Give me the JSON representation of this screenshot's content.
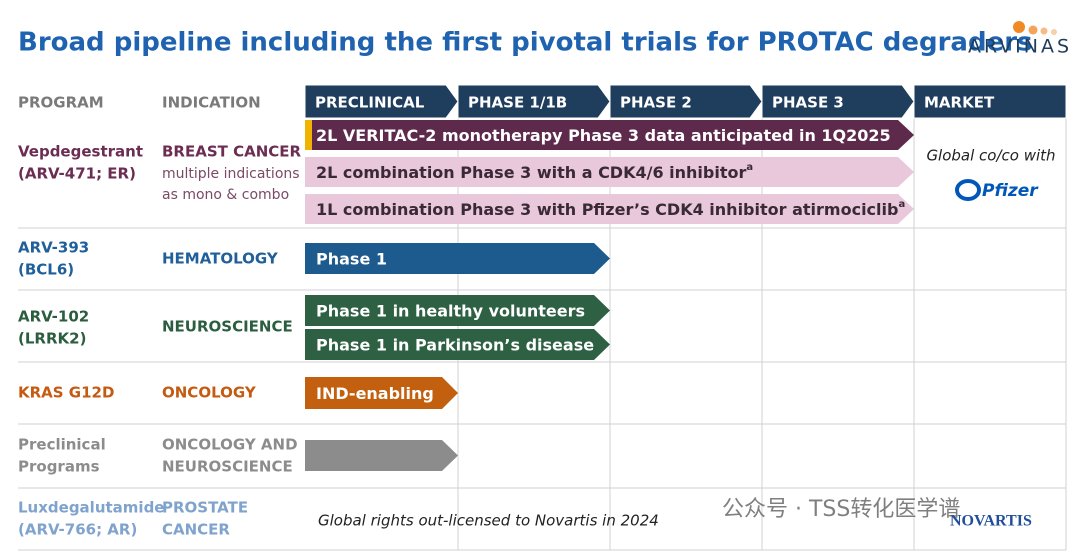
{
  "header": {
    "title": "Broad pipeline including the first pivotal trials for PROTAC degraders",
    "logo": "ARVINAS"
  },
  "columns": [
    "PROGRAM",
    "INDICATION"
  ],
  "phases": [
    "PRECLINICAL",
    "PHASE 1/1B",
    "PHASE 2",
    "PHASE 3",
    "MARKET"
  ],
  "rows": [
    {
      "program": [
        "Vepdegestrant",
        "(ARV-471; ER)"
      ],
      "indication": [
        "BREAST CANCER"
      ],
      "indication_note": [
        "multiple indications",
        "as mono & combo"
      ],
      "bars": [
        {
          "label": "2L VERITAC-2 monotherapy Phase 3 data anticipated in 1Q2025"
        },
        {
          "label": "2L combination Phase 3 with a CDK4/6 inhibitor",
          "footnote": "a"
        },
        {
          "label": "1L combination Phase 3 with Pfizer’s CDK4 inhibitor atirmociclib",
          "footnote": "a"
        }
      ],
      "market": "Global co/co with",
      "partner": "Pfizer"
    },
    {
      "program": [
        "ARV-393",
        "(BCL6)"
      ],
      "indication": [
        "HEMATOLOGY"
      ],
      "bars": [
        {
          "label": "Phase 1"
        }
      ]
    },
    {
      "program": [
        "ARV-102",
        "(LRRK2)"
      ],
      "indication": [
        "NEUROSCIENCE"
      ],
      "bars": [
        {
          "label": "Phase 1 in healthy volunteers"
        },
        {
          "label": "Phase 1 in Parkinson’s disease"
        }
      ]
    },
    {
      "program": [
        "KRAS G12D"
      ],
      "indication": [
        "ONCOLOGY"
      ],
      "bars": [
        {
          "label": "IND-enabling"
        }
      ]
    },
    {
      "program": [
        "Preclinical",
        "Programs"
      ],
      "indication": [
        "ONCOLOGY AND",
        "NEUROSCIENCE"
      ],
      "bars": [
        {}
      ]
    },
    {
      "program": [
        "Luxdegalutamide",
        "(ARV-766; AR)"
      ],
      "indication": [
        "PROSTATE",
        "CANCER"
      ],
      "note": "Global rights out-licensed to Novartis in 2024",
      "partner": "NOVARTIS"
    }
  ],
  "watermark": "公众号 · TSS转化医学谱"
}
